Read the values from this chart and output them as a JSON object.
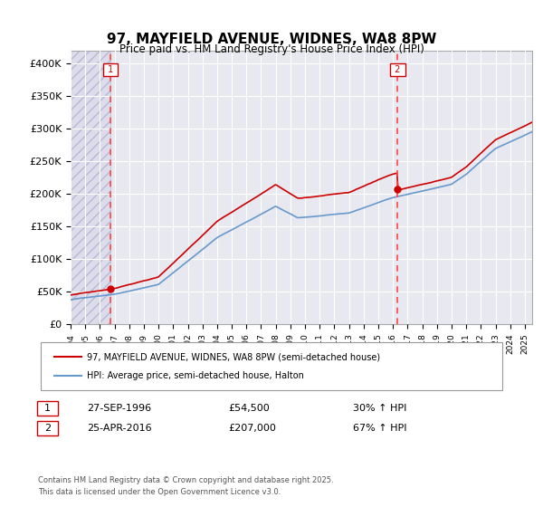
{
  "title": "97, MAYFIELD AVENUE, WIDNES, WA8 8PW",
  "subtitle": "Price paid vs. HM Land Registry's House Price Index (HPI)",
  "ylabel_ticks": [
    "£0",
    "£50K",
    "£100K",
    "£150K",
    "£200K",
    "£250K",
    "£300K",
    "£350K",
    "£400K"
  ],
  "ytick_values": [
    0,
    50000,
    100000,
    150000,
    200000,
    250000,
    300000,
    350000,
    400000
  ],
  "ylim": [
    0,
    420000
  ],
  "xlim_start": 1994.0,
  "xlim_end": 2025.5,
  "purchase1_date": 1996.74,
  "purchase1_price": 54500,
  "purchase2_date": 2016.32,
  "purchase2_price": 207000,
  "line1_color": "#cc0000",
  "line2_color": "#6699cc",
  "vline_color": "#ff4444",
  "dot_color": "#cc0000",
  "legend1": "97, MAYFIELD AVENUE, WIDNES, WA8 8PW (semi-detached house)",
  "legend2": "HPI: Average price, semi-detached house, Halton",
  "table_row1": [
    "1",
    "27-SEP-1996",
    "£54,500",
    "30% ↑ HPI"
  ],
  "table_row2": [
    "2",
    "25-APR-2016",
    "£207,000",
    "67% ↑ HPI"
  ],
  "footnote": "Contains HM Land Registry data © Crown copyright and database right 2025.\nThis data is licensed under the Open Government Licence v3.0.",
  "background_color": "#ffffff",
  "plot_bg_color": "#e8e8f0",
  "grid_color": "#ffffff",
  "hatch_color": "#ccccdd"
}
